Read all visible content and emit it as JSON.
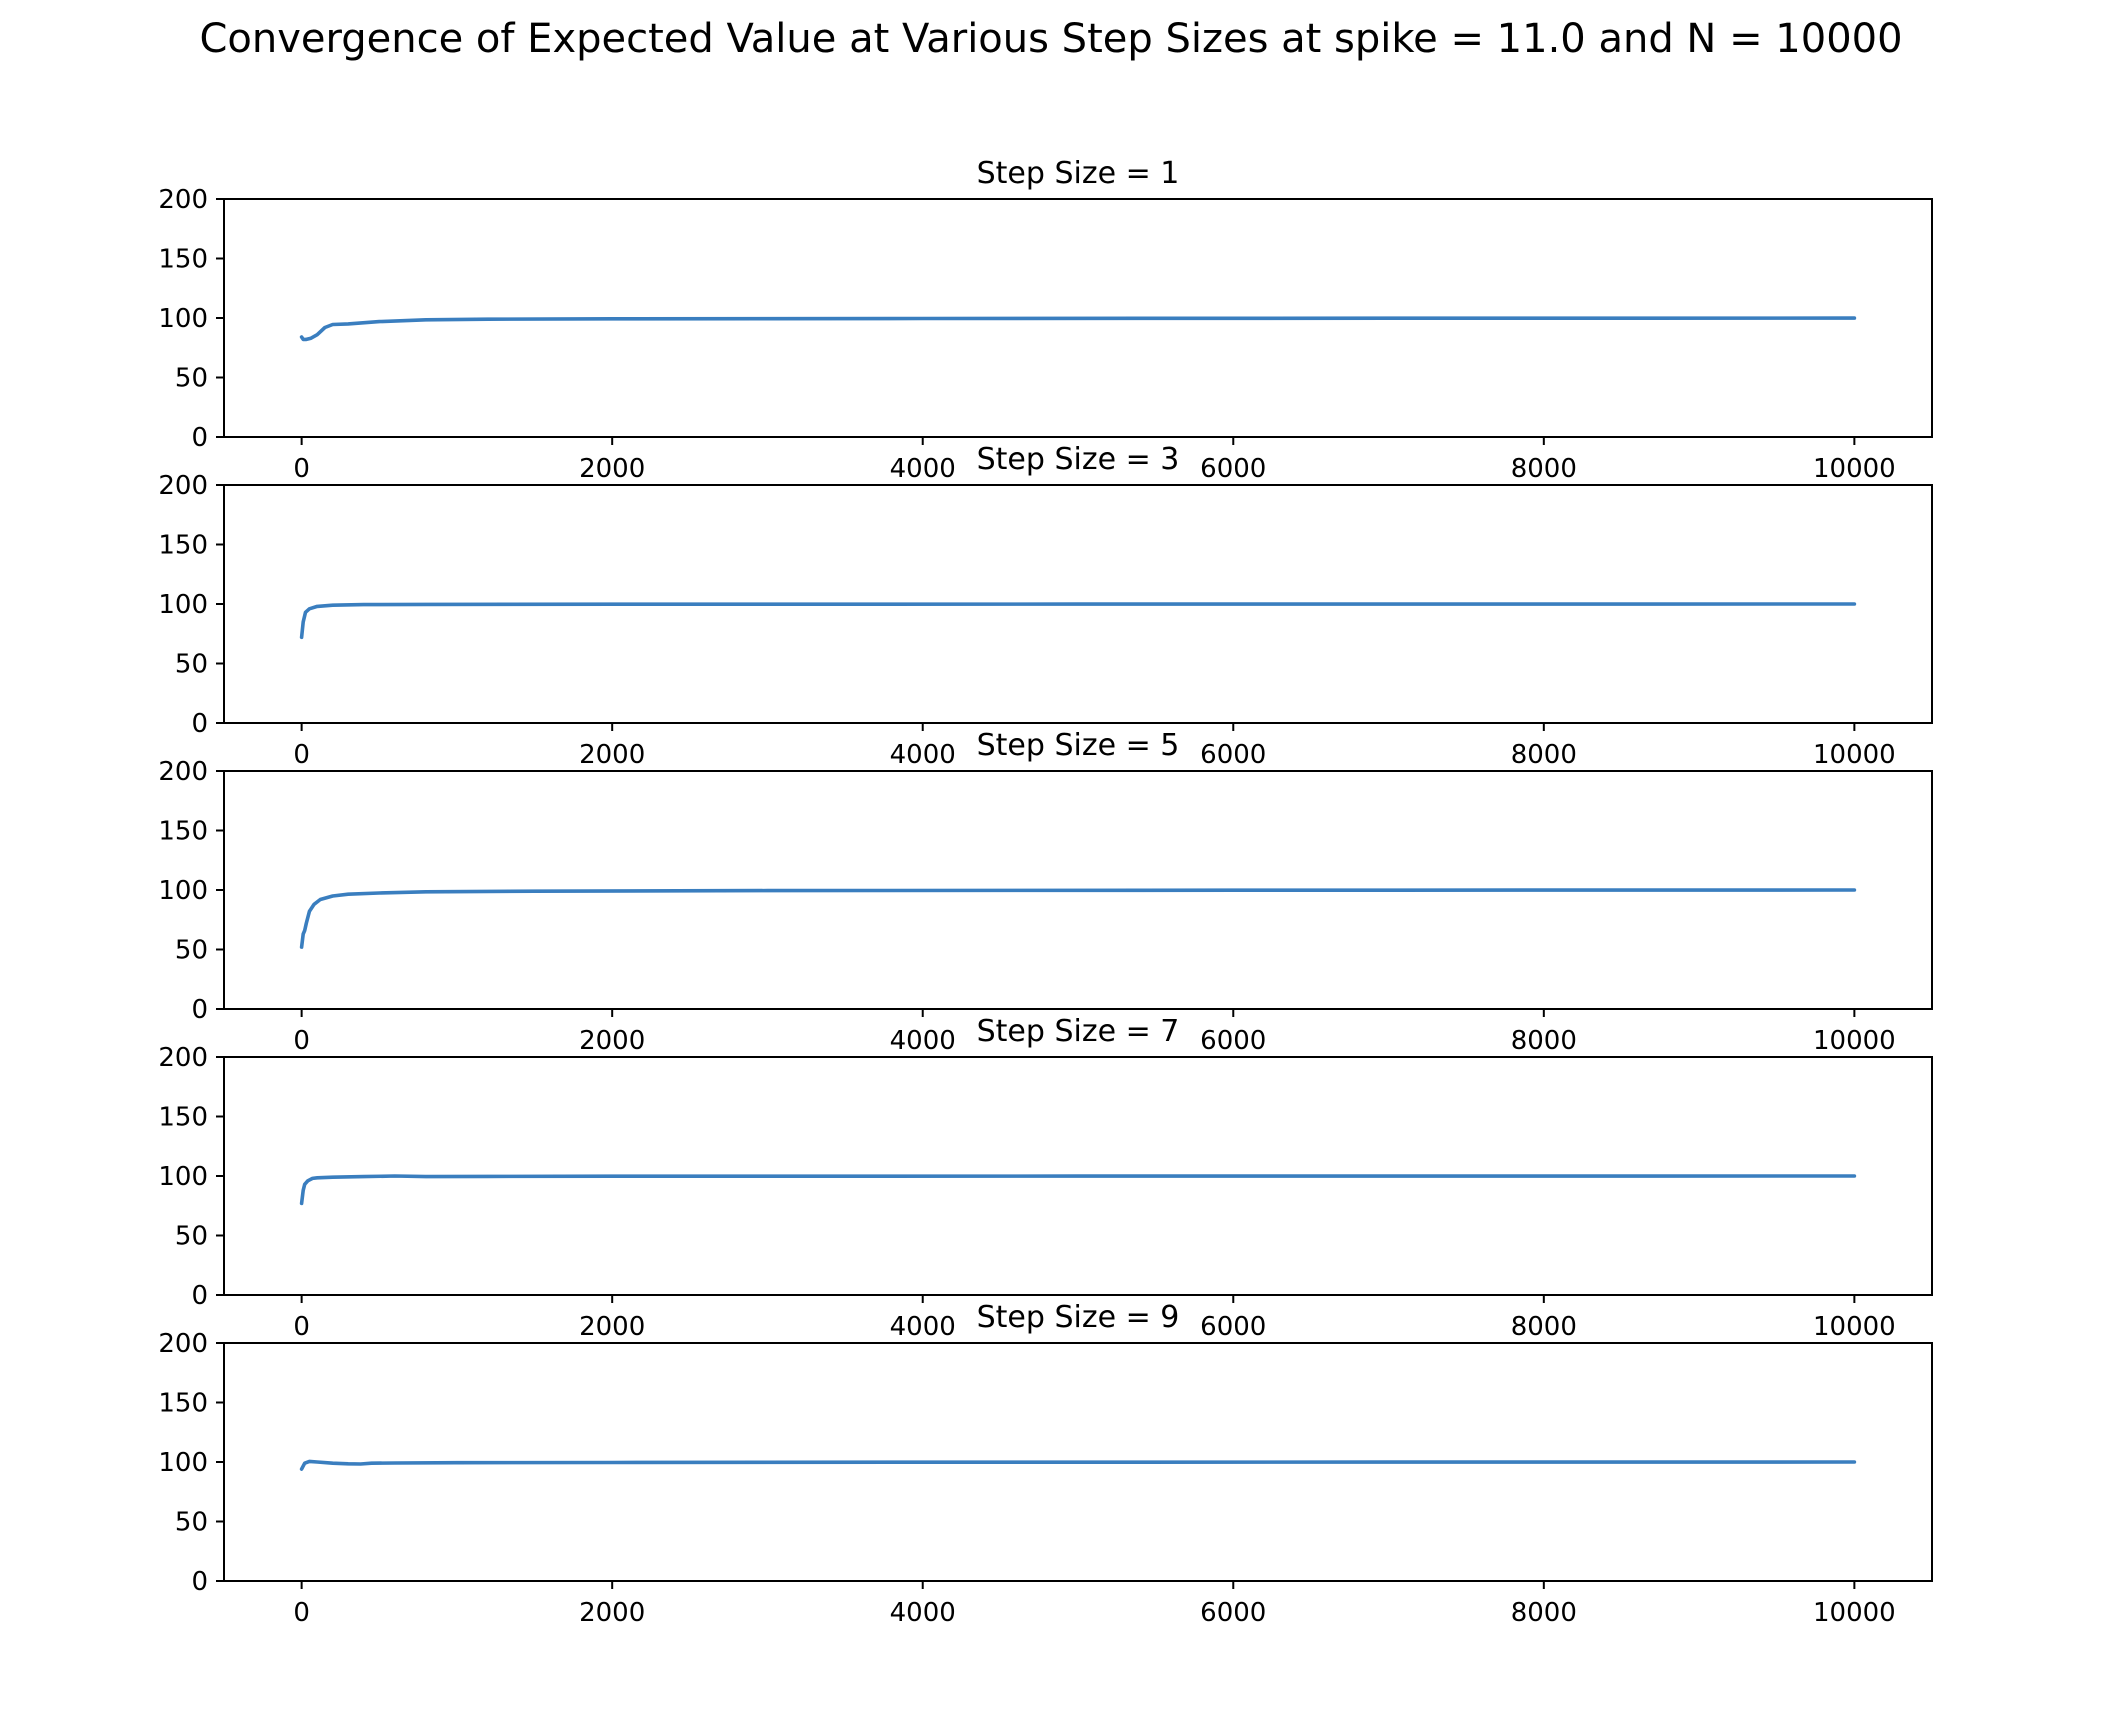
{
  "figure": {
    "title": "Convergence of Expected Value at Various Step Sizes at spike = 11.0 and N = 10000"
  },
  "colors": {
    "line": "#3a7ebf",
    "axes": "#000000",
    "background": "#ffffff"
  },
  "chart_data": [
    {
      "type": "line",
      "title": "Step Size = 1",
      "xlabel": "",
      "ylabel": "",
      "xlim": [
        -500,
        10500
      ],
      "ylim": [
        0,
        200
      ],
      "xticks": [
        0,
        2000,
        4000,
        6000,
        8000,
        10000
      ],
      "yticks": [
        0,
        50,
        100,
        150,
        200
      ],
      "grid": false,
      "series": [
        {
          "x": [
            0,
            10,
            30,
            60,
            100,
            150,
            200,
            300,
            500,
            800,
            1200,
            2000,
            4000,
            7000,
            10000
          ],
          "y": [
            84,
            82,
            82,
            83,
            86,
            92,
            94.5,
            95,
            97,
            98.5,
            99,
            99.3,
            99.6,
            99.8,
            99.9
          ]
        }
      ]
    },
    {
      "type": "line",
      "title": "Step Size = 3",
      "xlabel": "",
      "ylabel": "",
      "xlim": [
        -500,
        10500
      ],
      "ylim": [
        0,
        200
      ],
      "xticks": [
        0,
        2000,
        4000,
        6000,
        8000,
        10000
      ],
      "yticks": [
        0,
        50,
        100,
        150,
        200
      ],
      "grid": false,
      "series": [
        {
          "x": [
            0,
            10,
            25,
            50,
            100,
            200,
            400,
            800,
            2000,
            5000,
            10000
          ],
          "y": [
            72,
            85,
            93,
            96,
            98,
            99,
            99.5,
            99.7,
            99.8,
            99.9,
            100
          ]
        }
      ]
    },
    {
      "type": "line",
      "title": "Step Size = 5",
      "xlabel": "",
      "ylabel": "",
      "xlim": [
        -500,
        10500
      ],
      "ylim": [
        0,
        200
      ],
      "xticks": [
        0,
        2000,
        4000,
        6000,
        8000,
        10000
      ],
      "yticks": [
        0,
        50,
        100,
        150,
        200
      ],
      "grid": false,
      "series": [
        {
          "x": [
            0,
            10,
            20,
            30,
            50,
            80,
            120,
            200,
            300,
            500,
            800,
            1500,
            3000,
            6000,
            10000
          ],
          "y": [
            52,
            63,
            66,
            72,
            82,
            88,
            92,
            95,
            96.5,
            97.5,
            98.5,
            99,
            99.5,
            99.8,
            100
          ]
        }
      ]
    },
    {
      "type": "line",
      "title": "Step Size = 7",
      "xlabel": "",
      "ylabel": "",
      "xlim": [
        -500,
        10500
      ],
      "ylim": [
        0,
        200
      ],
      "xticks": [
        0,
        2000,
        4000,
        6000,
        8000,
        10000
      ],
      "yticks": [
        0,
        50,
        100,
        150,
        200
      ],
      "grid": false,
      "series": [
        {
          "x": [
            0,
            10,
            20,
            40,
            70,
            100,
            200,
            400,
            600,
            800,
            1200,
            2000,
            5000,
            10000
          ],
          "y": [
            77,
            88,
            93,
            96,
            98,
            98.5,
            99,
            99.5,
            100,
            99.5,
            99.7,
            99.8,
            99.9,
            100
          ]
        }
      ]
    },
    {
      "type": "line",
      "title": "Step Size = 9",
      "xlabel": "",
      "ylabel": "",
      "xlim": [
        -500,
        10500
      ],
      "ylim": [
        0,
        200
      ],
      "xticks": [
        0,
        2000,
        4000,
        6000,
        8000,
        10000
      ],
      "yticks": [
        0,
        50,
        100,
        150,
        200
      ],
      "grid": false,
      "series": [
        {
          "x": [
            0,
            20,
            50,
            100,
            200,
            300,
            380,
            450,
            600,
            1000,
            2000,
            4000,
            7000,
            10000
          ],
          "y": [
            94,
            99,
            100.5,
            100,
            99,
            98.5,
            98.3,
            99,
            99.2,
            99.4,
            99.6,
            99.8,
            99.9,
            100
          ]
        }
      ]
    }
  ]
}
